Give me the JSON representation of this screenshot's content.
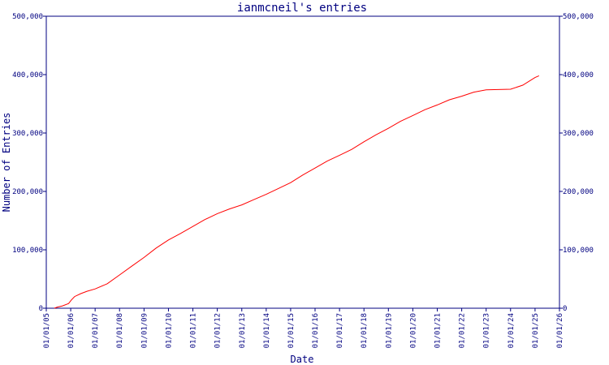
{
  "chart_data": {
    "type": "line",
    "title": "ianmcneil's entries",
    "xlabel": "Date",
    "ylabel": "Number of Entries",
    "xlim": [
      "2005-01-01",
      "2026-01-01"
    ],
    "ylim": [
      0,
      500000
    ],
    "grid": false,
    "legend": "none",
    "colors": {
      "line": "#ff0000",
      "axis": "#000080",
      "text": "#000080"
    },
    "y_ticks": [
      {
        "value": 0,
        "label": "0"
      },
      {
        "value": 100000,
        "label": "100,000"
      },
      {
        "value": 200000,
        "label": "200,000"
      },
      {
        "value": 300000,
        "label": "300,000"
      },
      {
        "value": 400000,
        "label": "400,000"
      },
      {
        "value": 500000,
        "label": "500,000"
      }
    ],
    "x_ticks": [
      {
        "date": "2005-01-01",
        "label": "01/01/05"
      },
      {
        "date": "2006-01-01",
        "label": "01/01/06"
      },
      {
        "date": "2007-01-01",
        "label": "01/01/07"
      },
      {
        "date": "2008-01-01",
        "label": "01/01/08"
      },
      {
        "date": "2009-01-01",
        "label": "01/01/09"
      },
      {
        "date": "2010-01-01",
        "label": "01/01/10"
      },
      {
        "date": "2011-01-01",
        "label": "01/01/11"
      },
      {
        "date": "2012-01-01",
        "label": "01/01/12"
      },
      {
        "date": "2013-01-01",
        "label": "01/01/13"
      },
      {
        "date": "2014-01-01",
        "label": "01/01/14"
      },
      {
        "date": "2015-01-01",
        "label": "01/01/15"
      },
      {
        "date": "2016-01-01",
        "label": "01/01/16"
      },
      {
        "date": "2017-01-01",
        "label": "01/01/17"
      },
      {
        "date": "2018-01-01",
        "label": "01/01/18"
      },
      {
        "date": "2019-01-01",
        "label": "01/01/19"
      },
      {
        "date": "2020-01-01",
        "label": "01/01/20"
      },
      {
        "date": "2021-01-01",
        "label": "01/01/21"
      },
      {
        "date": "2022-01-01",
        "label": "01/01/22"
      },
      {
        "date": "2023-01-01",
        "label": "01/01/23"
      },
      {
        "date": "2024-01-01",
        "label": "01/01/24"
      },
      {
        "date": "2025-01-01",
        "label": "01/01/25"
      },
      {
        "date": "2026-01-01",
        "label": "01/01/26"
      }
    ],
    "series": [
      {
        "points": [
          {
            "x": "2005-05-01",
            "y": 0
          },
          {
            "x": "2005-06-15",
            "y": 2000
          },
          {
            "x": "2005-09-01",
            "y": 4000
          },
          {
            "x": "2005-12-01",
            "y": 8000
          },
          {
            "x": "2006-01-10",
            "y": 14000
          },
          {
            "x": "2006-03-01",
            "y": 20000
          },
          {
            "x": "2006-06-01",
            "y": 25000
          },
          {
            "x": "2006-09-01",
            "y": 29000
          },
          {
            "x": "2007-01-01",
            "y": 33000
          },
          {
            "x": "2007-07-01",
            "y": 42000
          },
          {
            "x": "2008-01-01",
            "y": 57000
          },
          {
            "x": "2008-07-01",
            "y": 72000
          },
          {
            "x": "2009-01-01",
            "y": 87000
          },
          {
            "x": "2009-07-01",
            "y": 103000
          },
          {
            "x": "2010-01-01",
            "y": 117000
          },
          {
            "x": "2010-07-01",
            "y": 128000
          },
          {
            "x": "2011-01-01",
            "y": 140000
          },
          {
            "x": "2011-07-01",
            "y": 152000
          },
          {
            "x": "2012-01-01",
            "y": 162000
          },
          {
            "x": "2012-07-01",
            "y": 170000
          },
          {
            "x": "2013-01-01",
            "y": 177000
          },
          {
            "x": "2013-07-01",
            "y": 186000
          },
          {
            "x": "2014-01-01",
            "y": 195000
          },
          {
            "x": "2014-07-01",
            "y": 205000
          },
          {
            "x": "2015-01-01",
            "y": 215000
          },
          {
            "x": "2015-07-01",
            "y": 228000
          },
          {
            "x": "2016-01-01",
            "y": 240000
          },
          {
            "x": "2016-07-01",
            "y": 252000
          },
          {
            "x": "2017-01-01",
            "y": 262000
          },
          {
            "x": "2017-07-01",
            "y": 272000
          },
          {
            "x": "2018-01-01",
            "y": 285000
          },
          {
            "x": "2018-07-01",
            "y": 297000
          },
          {
            "x": "2019-01-01",
            "y": 308000
          },
          {
            "x": "2019-07-01",
            "y": 320000
          },
          {
            "x": "2020-01-01",
            "y": 330000
          },
          {
            "x": "2020-07-01",
            "y": 340000
          },
          {
            "x": "2021-01-01",
            "y": 348000
          },
          {
            "x": "2021-07-01",
            "y": 357000
          },
          {
            "x": "2022-01-01",
            "y": 363000
          },
          {
            "x": "2022-07-01",
            "y": 370000
          },
          {
            "x": "2023-01-01",
            "y": 374000
          },
          {
            "x": "2023-07-01",
            "y": 374500
          },
          {
            "x": "2024-01-01",
            "y": 375000
          },
          {
            "x": "2024-07-01",
            "y": 382000
          },
          {
            "x": "2025-01-01",
            "y": 395000
          },
          {
            "x": "2025-03-01",
            "y": 398000
          }
        ]
      }
    ]
  }
}
